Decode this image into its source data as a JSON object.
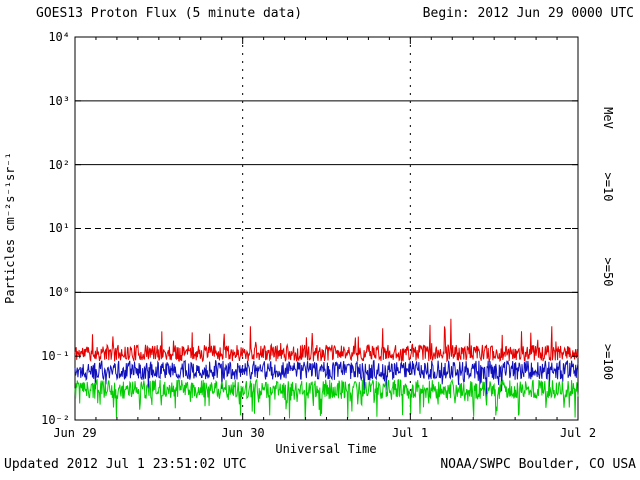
{
  "header": {
    "begin": "Begin: 2012 Jun 29 0000 UTC"
  },
  "footer": {
    "updated": "Updated 2012 Jul  1 23:51:02 UTC",
    "credit": "NOAA/SWPC Boulder, CO USA"
  },
  "chart_data": {
    "type": "line",
    "title": "GOES13 Proton Flux (5 minute data)",
    "xlabel": "Universal Time",
    "ylabel": "Particles cm⁻²s⁻¹sr⁻¹",
    "right_axis_label": "MeV",
    "x_ticks": [
      "Jun 29",
      "Jun 30",
      "Jul 1",
      "Jul 2"
    ],
    "y_ticks": [
      "10⁴",
      "10³",
      "10²",
      "10¹",
      "10⁰",
      "10⁻¹",
      "10⁻²"
    ],
    "ylim_log10": [
      -2,
      4
    ],
    "x_range_days": 3,
    "points_per_day": 288,
    "grid": {
      "h_solid_log10": [
        3,
        2,
        0
      ],
      "h_dashed_log10": [
        1
      ],
      "v_dashed_days": [
        1,
        2
      ]
    },
    "series": [
      {
        "name": "proton-flux-ge10-MeV",
        "label": ">=10",
        "color": "#e60000",
        "approx_flux_mean": 0.11,
        "mean_log10": -0.95,
        "noise_log10": 0.13,
        "spike_log10": 0.45,
        "spike_prob": 0.05,
        "spike_bias": 1,
        "seed": 11
      },
      {
        "name": "proton-flux-ge50-MeV",
        "label": ">=50",
        "color": "#1111bb",
        "approx_flux_mean": 0.06,
        "mean_log10": -1.22,
        "noise_log10": 0.15,
        "spike_log10": 0.3,
        "spike_prob": 0.04,
        "spike_bias": -1,
        "seed": 22
      },
      {
        "name": "proton-flux-ge100-MeV",
        "label": ">=100",
        "color": "#00cc00",
        "approx_flux_mean": 0.03,
        "mean_log10": -1.52,
        "noise_log10": 0.15,
        "spike_log10": 0.4,
        "spike_prob": 0.1,
        "spike_bias": -1,
        "seed": 33
      }
    ],
    "legend_position": "right",
    "grid_on": true
  }
}
